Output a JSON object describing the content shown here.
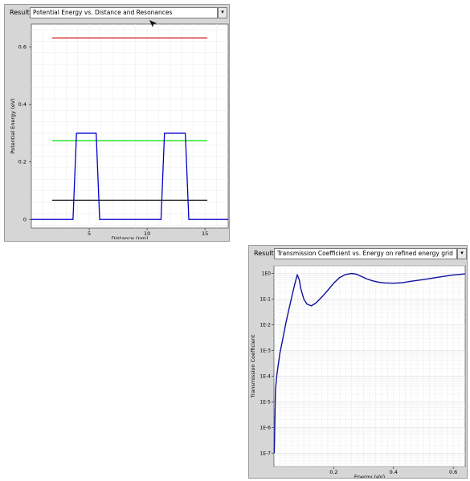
{
  "top_panel": {
    "result_label": "Result",
    "selected_result": "Potential Energy vs. Distance and Resonances",
    "dropdown_glyph": "▾"
  },
  "bottom_panel": {
    "result_label": "Result",
    "selected_result": "Transmission Coefficient vs. Energy on refined energy grid",
    "dropdown_glyph": "▾"
  },
  "chart_data": [
    {
      "type": "line",
      "title": "",
      "xlabel": "Distance (nm)",
      "ylabel": "Potential Energy (eV)",
      "xlim": [
        0,
        17
      ],
      "ylim": [
        -0.03,
        0.68
      ],
      "x_ticks": [
        5,
        10,
        15
      ],
      "y_ticks": [
        0,
        0.2,
        0.4,
        0.6
      ],
      "grid": true,
      "potential": {
        "color": "#0000cc",
        "x": [
          0,
          3.6,
          3.9,
          5.6,
          5.9,
          11.2,
          11.5,
          13.3,
          13.6,
          17
        ],
        "y": [
          0,
          0,
          0.3,
          0.3,
          0,
          0,
          0.3,
          0.3,
          0,
          0
        ]
      },
      "resonances": [
        {
          "energy": 0.067,
          "color": "#000000",
          "x_range": [
            1.8,
            15.2
          ]
        },
        {
          "energy": 0.274,
          "color": "#00dd00",
          "x_range": [
            1.8,
            15.2
          ]
        },
        {
          "energy": 0.632,
          "color": "#cc0000",
          "x_range": [
            1.8,
            15.2
          ]
        }
      ]
    },
    {
      "type": "line",
      "title": "",
      "xlabel": "Energy (eV)",
      "ylabel": "Transmission Coefficient",
      "yscale": "log",
      "xlim": [
        0,
        0.64
      ],
      "ylim": [
        3e-08,
        2
      ],
      "x_ticks": [
        0.2,
        0.4,
        0.6
      ],
      "y_ticks": [
        "1E0",
        "1E-1",
        "1E-2",
        "1E-3",
        "1E-4",
        "1E-5",
        "1E-6",
        "1E-7"
      ],
      "grid": true,
      "series": [
        {
          "color": "#1010a0",
          "x": [
            0.001,
            0.005,
            0.01,
            0.02,
            0.03,
            0.04,
            0.05,
            0.06,
            0.07,
            0.078,
            0.085,
            0.09,
            0.1,
            0.11,
            0.125,
            0.14,
            0.16,
            0.18,
            0.2,
            0.22,
            0.24,
            0.26,
            0.275,
            0.29,
            0.31,
            0.33,
            0.35,
            0.37,
            0.4,
            0.43,
            0.46,
            0.5,
            0.55,
            0.6,
            0.64
          ],
          "y": [
            1e-07,
            3e-05,
            0.00012,
            0.0008,
            0.003,
            0.012,
            0.04,
            0.13,
            0.4,
            0.9,
            0.55,
            0.25,
            0.1,
            0.065,
            0.055,
            0.07,
            0.12,
            0.22,
            0.42,
            0.7,
            0.92,
            1.0,
            0.95,
            0.8,
            0.62,
            0.52,
            0.46,
            0.43,
            0.42,
            0.44,
            0.5,
            0.58,
            0.72,
            0.88,
            0.97
          ]
        }
      ]
    }
  ]
}
